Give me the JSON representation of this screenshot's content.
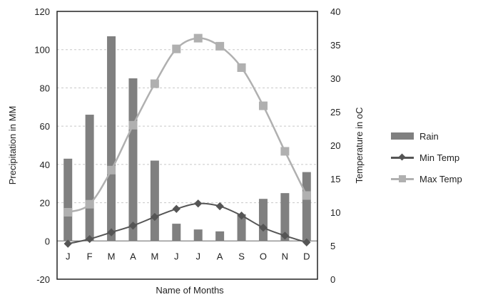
{
  "chart_data": {
    "type": "bar+line",
    "xlabel": "Name of Months",
    "ylabel_left": "Precipitation in MM",
    "ylabel_right": "Temperature in oC",
    "categories": [
      "J",
      "F",
      "M",
      "A",
      "M",
      "J",
      "J",
      "A",
      "S",
      "O",
      "N",
      "D"
    ],
    "y_left": {
      "min": -20,
      "max": 120,
      "ticks": [
        "-20",
        "0",
        "20",
        "40",
        "60",
        "80",
        "100",
        "120"
      ]
    },
    "y_right": {
      "min": 0,
      "max": 40,
      "ticks": [
        "0",
        "5",
        "10",
        "15",
        "20",
        "25",
        "30",
        "35",
        "40"
      ]
    },
    "grid": true,
    "legend_position": "right",
    "series": [
      {
        "name": "Rain",
        "type": "bar",
        "axis": "left",
        "color": "#808080",
        "values": [
          43,
          66,
          107,
          85,
          42,
          9,
          6,
          5,
          14,
          22,
          25,
          36
        ]
      },
      {
        "name": "Min Temp",
        "type": "line",
        "axis": "right",
        "color": "#555555",
        "marker": "diamond",
        "values": [
          5.3,
          6.0,
          7.0,
          8.0,
          9.3,
          10.5,
          11.3,
          10.9,
          9.5,
          7.7,
          6.5,
          5.5
        ]
      },
      {
        "name": "Max Temp",
        "type": "line",
        "axis": "right",
        "color": "#b0b0b0",
        "marker": "square",
        "values": [
          10.0,
          11.2,
          16.3,
          23.0,
          29.2,
          34.4,
          36.0,
          34.8,
          31.6,
          25.9,
          19.1,
          12.5
        ]
      }
    ]
  }
}
